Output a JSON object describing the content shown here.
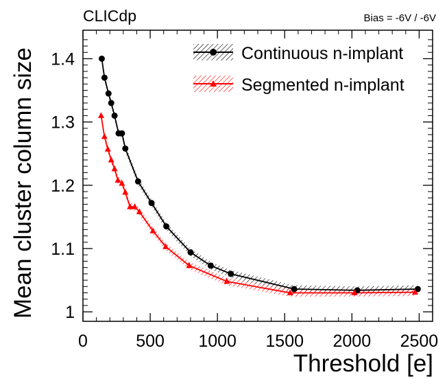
{
  "chart_data": {
    "type": "line",
    "experiment_label": "CLICdp",
    "condition_label": "Bias = -6V / -6V",
    "xlabel": "Threshold [e]",
    "ylabel": "Mean cluster column size",
    "xlim": [
      0,
      2600
    ],
    "ylim": [
      0.985,
      1.445
    ],
    "x_ticks": [
      0,
      500,
      1000,
      1500,
      2000,
      2500
    ],
    "x_tick_labels": [
      "0",
      "500",
      "1000",
      "1500",
      "2000",
      "2500"
    ],
    "y_ticks": [
      1.0,
      1.1,
      1.2,
      1.3,
      1.4
    ],
    "y_tick_labels": [
      "1",
      "1.1",
      "1.2",
      "1.3",
      "1.4"
    ],
    "grid": false,
    "legend_position": "top-right",
    "series": [
      {
        "name": "Continuous n-implant",
        "color": "#000000",
        "marker": "circle",
        "x": [
          140,
          160,
          190,
          210,
          235,
          265,
          290,
          315,
          410,
          510,
          620,
          800,
          950,
          1100,
          1570,
          2040,
          2490
        ],
        "y": [
          1.4,
          1.37,
          1.345,
          1.33,
          1.31,
          1.282,
          1.282,
          1.258,
          1.206,
          1.172,
          1.135,
          1.094,
          1.073,
          1.06,
          1.036,
          1.034,
          1.036
        ],
        "uncertainty": 0.006
      },
      {
        "name": "Segmented n-implant",
        "color": "#ff0000",
        "marker": "triangle",
        "x": [
          135,
          160,
          185,
          210,
          235,
          260,
          290,
          315,
          350,
          385,
          420,
          520,
          615,
          790,
          1070,
          1540,
          2020,
          2470
        ],
        "y": [
          1.31,
          1.277,
          1.257,
          1.24,
          1.226,
          1.208,
          1.203,
          1.189,
          1.166,
          1.166,
          1.158,
          1.128,
          1.103,
          1.073,
          1.048,
          1.03,
          1.03,
          1.031
        ],
        "uncertainty": 0.006
      }
    ]
  }
}
